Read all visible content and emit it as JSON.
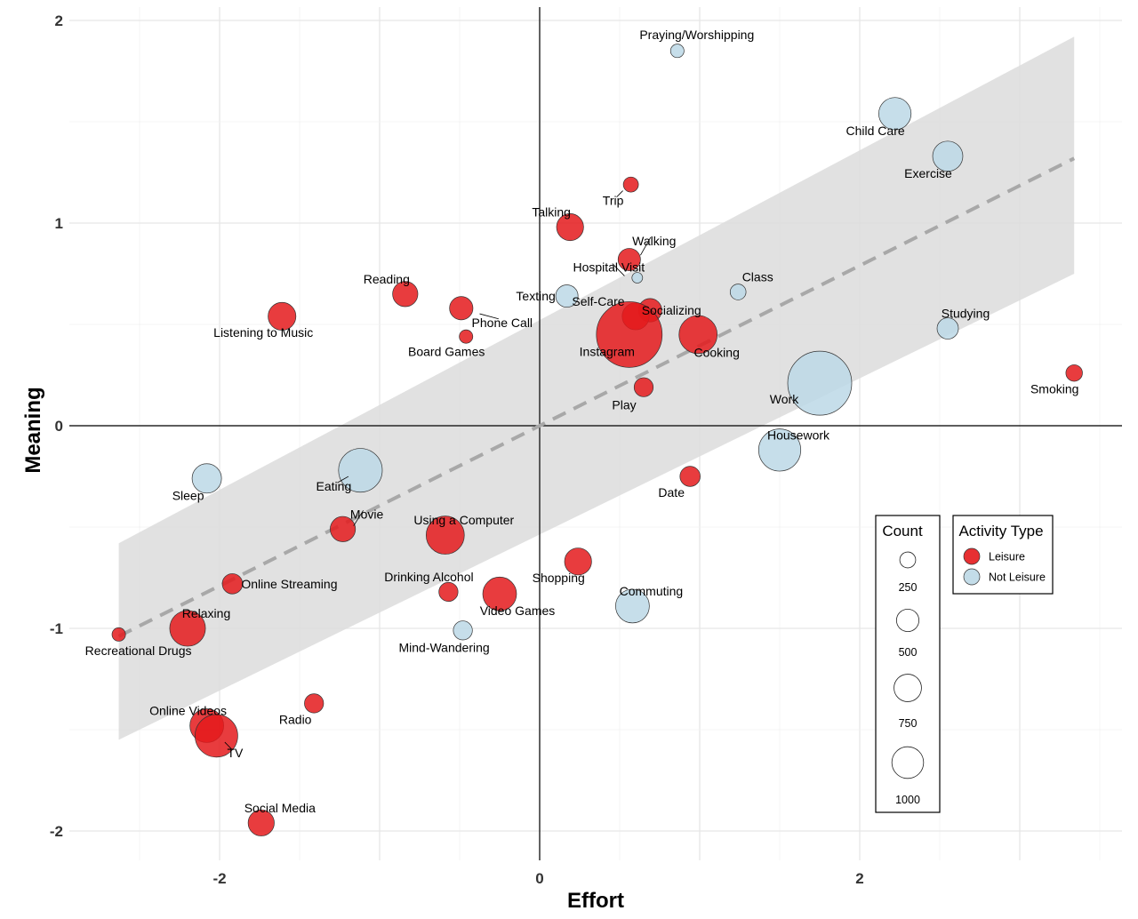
{
  "chart_data": {
    "type": "scatter",
    "xlabel": "Effort",
    "ylabel": "Meaning",
    "xlim": [
      -3.35,
      3.6
    ],
    "ylim": [
      -2.15,
      2.1
    ],
    "x_ticks": [
      -2,
      0,
      2
    ],
    "x_tick_labels": [
      "-2",
      "0",
      "2"
    ],
    "y_ticks": [
      -2,
      -1,
      0,
      1,
      2
    ],
    "y_tick_labels": [
      "-2",
      "-1",
      "0",
      "1",
      "2"
    ],
    "grid": true,
    "colors": {
      "Leisure": "#e41a1c",
      "Not Leisure": "#bcd8e6"
    },
    "trend": {
      "style": "dashed",
      "x_range": [
        -2.63,
        3.34
      ],
      "intercept": 0.0,
      "slope": 0.395,
      "ci_lower": [
        -1.55,
        0.75
      ],
      "ci_upper": [
        -0.58,
        1.92
      ]
    },
    "points": [
      {
        "label": "Praying/Worshipping",
        "x": 0.86,
        "y": 1.85,
        "count": 40,
        "type": "Not Leisure"
      },
      {
        "label": "Child Care",
        "x": 2.22,
        "y": 1.54,
        "count": 230,
        "type": "Not Leisure"
      },
      {
        "label": "Exercise",
        "x": 2.55,
        "y": 1.33,
        "count": 200,
        "type": "Not Leisure"
      },
      {
        "label": "Trip",
        "x": 0.57,
        "y": 1.19,
        "count": 50,
        "type": "Leisure"
      },
      {
        "label": "Talking",
        "x": 0.19,
        "y": 0.98,
        "count": 160,
        "type": "Leisure"
      },
      {
        "label": "Walking",
        "x": 0.56,
        "y": 0.82,
        "count": 110,
        "type": "Leisure"
      },
      {
        "label": "Hospital Visit",
        "x": 0.61,
        "y": 0.73,
        "count": 25,
        "type": "Not Leisure"
      },
      {
        "label": "Reading",
        "x": -0.84,
        "y": 0.65,
        "count": 140,
        "type": "Leisure"
      },
      {
        "label": "Class",
        "x": 1.24,
        "y": 0.66,
        "count": 55,
        "type": "Not Leisure"
      },
      {
        "label": "Texting",
        "x": 0.17,
        "y": 0.64,
        "count": 110,
        "type": "Not Leisure"
      },
      {
        "label": "Socializing",
        "x": 0.69,
        "y": 0.57,
        "count": 120,
        "type": "Leisure"
      },
      {
        "label": "Phone Call",
        "x": -0.49,
        "y": 0.58,
        "count": 120,
        "type": "Leisure"
      },
      {
        "label": "Self-Care",
        "x": 0.6,
        "y": 0.54,
        "count": 160,
        "type": "Leisure"
      },
      {
        "label": "Listening to Music",
        "x": -1.61,
        "y": 0.54,
        "count": 170,
        "type": "Leisure"
      },
      {
        "label": "Studying",
        "x": 2.55,
        "y": 0.48,
        "count": 100,
        "type": "Not Leisure"
      },
      {
        "label": "Instagram",
        "x": 0.56,
        "y": 0.45,
        "count": 950,
        "type": "Leisure"
      },
      {
        "label": "Cooking",
        "x": 0.99,
        "y": 0.45,
        "count": 320,
        "type": "Leisure"
      },
      {
        "label": "Board Games",
        "x": -0.46,
        "y": 0.44,
        "count": 40,
        "type": "Leisure"
      },
      {
        "label": "Smoking",
        "x": 3.34,
        "y": 0.26,
        "count": 60,
        "type": "Leisure"
      },
      {
        "label": "Work",
        "x": 1.75,
        "y": 0.21,
        "count": 900,
        "type": "Not Leisure"
      },
      {
        "label": "Play",
        "x": 0.65,
        "y": 0.19,
        "count": 80,
        "type": "Leisure"
      },
      {
        "label": "Housework",
        "x": 1.5,
        "y": -0.12,
        "count": 390,
        "type": "Not Leisure"
      },
      {
        "label": "Eating",
        "x": -1.12,
        "y": -0.22,
        "count": 420,
        "type": "Not Leisure"
      },
      {
        "label": "Date",
        "x": 0.94,
        "y": -0.25,
        "count": 90,
        "type": "Leisure"
      },
      {
        "label": "Sleep",
        "x": -2.08,
        "y": -0.26,
        "count": 190,
        "type": "Not Leisure"
      },
      {
        "label": "Movie",
        "x": -1.23,
        "y": -0.51,
        "count": 140,
        "type": "Leisure"
      },
      {
        "label": "Using a Computer",
        "x": -0.59,
        "y": -0.54,
        "count": 320,
        "type": "Leisure"
      },
      {
        "label": "Shopping",
        "x": 0.24,
        "y": -0.67,
        "count": 160,
        "type": "Leisure"
      },
      {
        "label": "Online Streaming",
        "x": -1.92,
        "y": -0.78,
        "count": 90,
        "type": "Leisure"
      },
      {
        "label": "Drinking Alcohol",
        "x": -0.57,
        "y": -0.82,
        "count": 80,
        "type": "Leisure"
      },
      {
        "label": "Video Games",
        "x": -0.25,
        "y": -0.83,
        "count": 250,
        "type": "Leisure"
      },
      {
        "label": "Commuting",
        "x": 0.58,
        "y": -0.89,
        "count": 250,
        "type": "Not Leisure"
      },
      {
        "label": "Relaxing",
        "x": -2.2,
        "y": -1.0,
        "count": 280,
        "type": "Leisure"
      },
      {
        "label": "Mind-Wandering",
        "x": -0.48,
        "y": -1.01,
        "count": 80,
        "type": "Not Leisure"
      },
      {
        "label": "Recreational Drugs",
        "x": -2.63,
        "y": -1.03,
        "count": 40,
        "type": "Leisure"
      },
      {
        "label": "Radio",
        "x": -1.41,
        "y": -1.37,
        "count": 80,
        "type": "Leisure"
      },
      {
        "label": "Online Videos",
        "x": -2.08,
        "y": -1.48,
        "count": 250,
        "type": "Leisure"
      },
      {
        "label": "TV",
        "x": -2.02,
        "y": -1.53,
        "count": 400,
        "type": "Leisure"
      },
      {
        "label": "Social Media",
        "x": -1.74,
        "y": -1.96,
        "count": 150,
        "type": "Leisure"
      }
    ]
  },
  "legend": {
    "count_title": "Count",
    "count_levels": [
      250,
      500,
      750,
      1000
    ],
    "count_labels": [
      "250",
      "500",
      "750",
      "1000"
    ],
    "type_title": "Activity Type",
    "type_items": [
      {
        "label": "Leisure",
        "color": "#e41a1c"
      },
      {
        "label": "Not Leisure",
        "color": "#bcd8e6"
      }
    ]
  }
}
